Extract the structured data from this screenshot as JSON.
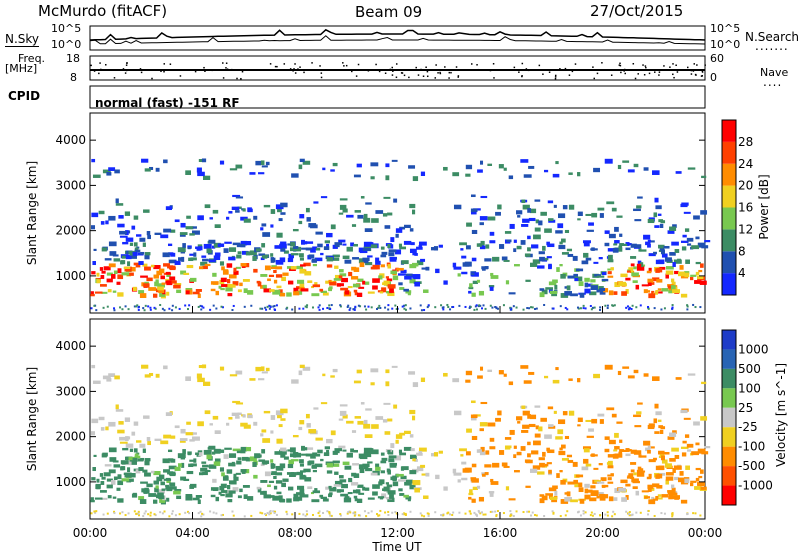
{
  "header": {
    "station": "McMurdo (fitACF)",
    "beam": "Beam 09",
    "date": "27/Oct/2015"
  },
  "top_panels": {
    "nsky_label": "N.Sky",
    "nsky_ticks": [
      "10^5",
      "10^0"
    ],
    "nsearch_label": "N.Search",
    "nsearch_ticks": [
      "10^5",
      "10^0"
    ],
    "freq_label_1": "Freq.",
    "freq_label_2": "[MHz]",
    "freq_ticks": [
      "18",
      "8"
    ],
    "nave_label": "Nave",
    "nave_ticks": [
      "60",
      "0"
    ],
    "cpid_label": "CPID",
    "cpid_text": "normal (fast) -151 RF"
  },
  "chart_data": [
    {
      "type": "heatmap",
      "name": "power",
      "ylabel": "Slant Range [km]",
      "ylim": [
        180,
        4600
      ],
      "yticks": [
        1000,
        2000,
        3000,
        4000
      ],
      "xlim": [
        0,
        24
      ],
      "colorbar_label": "Power [dB]",
      "colorbar_ticks": [
        "4",
        "8",
        "12",
        "16",
        "20",
        "24",
        "28"
      ],
      "colors": [
        "#1428ff",
        "#2050b0",
        "#3c8c64",
        "#78c850",
        "#f0d020",
        "#ff8c00",
        "#ff4000",
        "#ff0000"
      ]
    },
    {
      "type": "heatmap",
      "name": "velocity",
      "ylabel": "Slant Range [km]",
      "ylim": [
        180,
        4600
      ],
      "yticks": [
        1000,
        2000,
        3000,
        4000
      ],
      "xlim": [
        0,
        24
      ],
      "xticks": [
        "00:00",
        "04:00",
        "08:00",
        "12:00",
        "16:00",
        "20:00",
        "00:00"
      ],
      "xlabel": "Time UT",
      "colorbar_label": "Velocity [m s^-1]",
      "colorbar_ticks": [
        "1000",
        "500",
        "100",
        "25",
        "-25",
        "-100",
        "-500",
        "-1000"
      ],
      "colors": [
        "#1e3cc8",
        "#2864b4",
        "#3c8c64",
        "#78c850",
        "#c8c8c8",
        "#f0d020",
        "#ff8c00",
        "#ff5000",
        "#ff0000"
      ]
    }
  ]
}
